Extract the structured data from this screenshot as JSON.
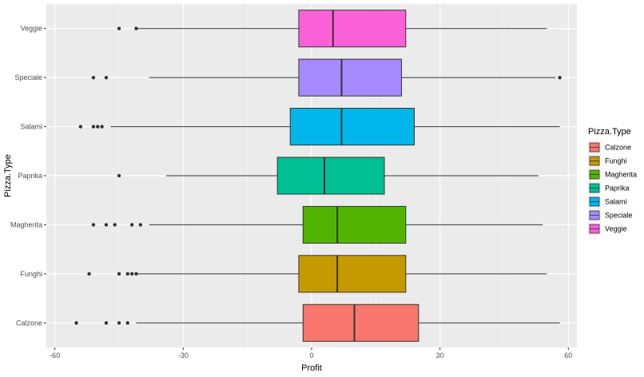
{
  "chart_data": {
    "type": "boxplot",
    "orientation": "horizontal",
    "title": "",
    "xlabel": "Profit",
    "ylabel": "Pizza.Type",
    "xlim": [
      -62,
      62
    ],
    "x_ticks": [
      -60,
      -30,
      0,
      30,
      60
    ],
    "x_tick_labels": [
      "-60",
      "-30",
      "0",
      "30",
      "60"
    ],
    "grid": true,
    "legend": {
      "title": "Pizza.Type",
      "position": "right"
    },
    "categories": [
      "Calzone",
      "Funghi",
      "Magherita",
      "Paprika",
      "Salami",
      "Speciale",
      "Veggie"
    ],
    "series": [
      {
        "name": "Calzone",
        "color": "#F8766D",
        "whisker_low": -41,
        "q1": -2,
        "median": 10,
        "q3": 25,
        "whisker_high": 58,
        "outliers": [
          -55,
          -48,
          -45,
          -43
        ]
      },
      {
        "name": "Funghi",
        "color": "#C49A00",
        "whisker_low": -41,
        "q1": -3,
        "median": 6,
        "q3": 22,
        "whisker_high": 55,
        "outliers": [
          -52,
          -45,
          -43,
          -42,
          -41
        ]
      },
      {
        "name": "Magherita",
        "color": "#53B400",
        "whisker_low": -38,
        "q1": -2,
        "median": 6,
        "q3": 22,
        "whisker_high": 54,
        "outliers": [
          -51,
          -48,
          -46,
          -42,
          -40
        ]
      },
      {
        "name": "Paprika",
        "color": "#00C094",
        "whisker_low": -34,
        "q1": -8,
        "median": 3,
        "q3": 17,
        "whisker_high": 53,
        "outliers": [
          -45
        ]
      },
      {
        "name": "Salami",
        "color": "#00B6EB",
        "whisker_low": -47,
        "q1": -5,
        "median": 7,
        "q3": 24,
        "whisker_high": 58,
        "outliers": [
          -54,
          -51,
          -50,
          -49
        ]
      },
      {
        "name": "Speciale",
        "color": "#A58AFF",
        "whisker_low": -38,
        "q1": -3,
        "median": 7,
        "q3": 21,
        "whisker_high": 57,
        "outliers": [
          -51,
          -48,
          58
        ]
      },
      {
        "name": "Veggie",
        "color": "#FB61D7",
        "whisker_low": -41,
        "q1": -3,
        "median": 5,
        "q3": 22,
        "whisker_high": 55,
        "outliers": [
          -45,
          -41
        ]
      }
    ]
  }
}
